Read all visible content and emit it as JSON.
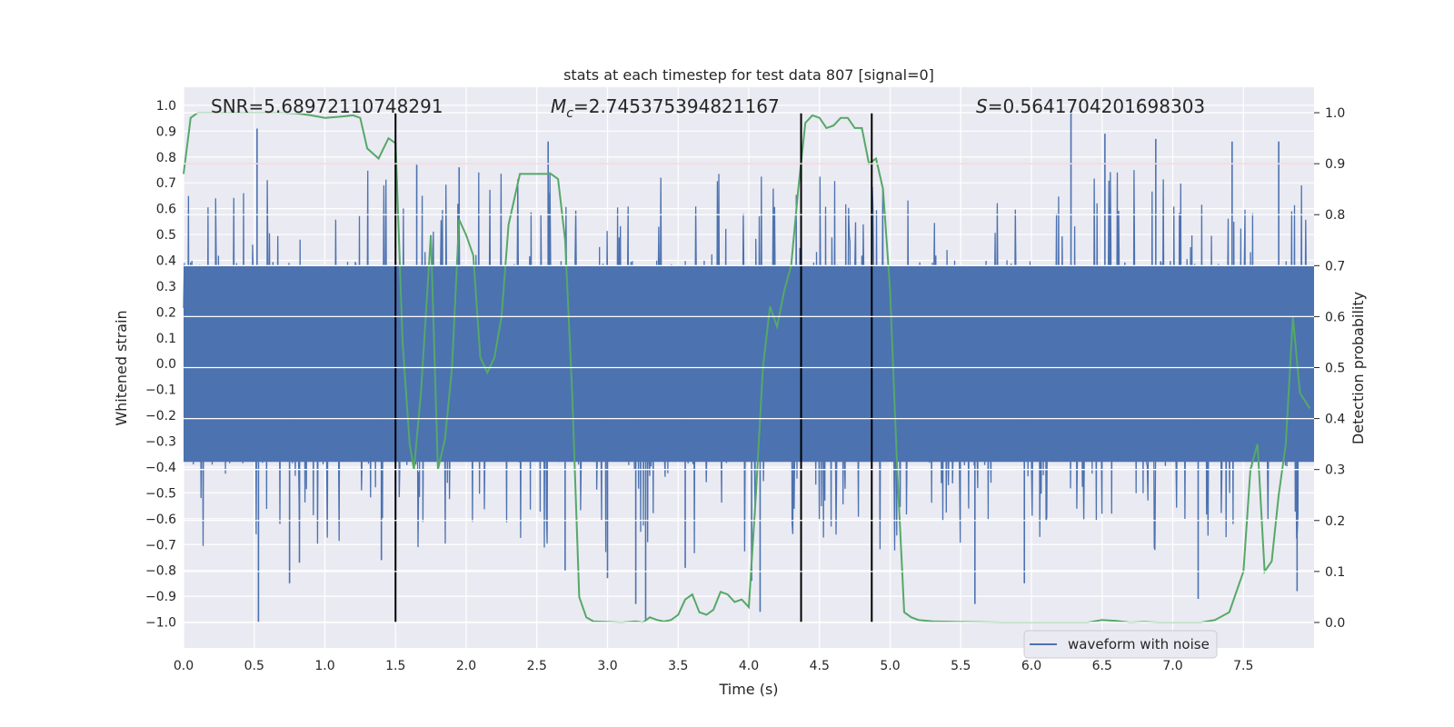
{
  "chart_data": {
    "type": "line",
    "title": "stats at each timestep for test data 807 [signal=0]",
    "xlabel": "Time (s)",
    "ylabel_left": "Whitened strain",
    "ylabel_right": "Detection probability",
    "xlim": [
      0,
      8
    ],
    "ylim_left": [
      -1.1,
      1.07
    ],
    "ylim_right": [
      -0.05,
      1.05
    ],
    "x_ticks": [
      "0.0",
      "0.5",
      "1.0",
      "1.5",
      "2.0",
      "2.5",
      "3.0",
      "3.5",
      "4.0",
      "4.5",
      "5.0",
      "5.5",
      "6.0",
      "6.5",
      "7.0",
      "7.5"
    ],
    "y_left_ticks": [
      "1.0",
      "0.9",
      "0.8",
      "0.7",
      "0.6",
      "0.5",
      "0.4",
      "0.3",
      "0.2",
      "0.1",
      "0.0",
      "-0.1",
      "-0.2",
      "-0.3",
      "-0.4",
      "-0.5",
      "-0.6",
      "-0.7",
      "-0.8",
      "-0.9",
      "-1.0"
    ],
    "y_right_ticks": [
      "1.0",
      "0.9",
      "0.8",
      "0.7",
      "0.6",
      "0.5",
      "0.4",
      "0.3",
      "0.2",
      "0.1",
      "0.0"
    ],
    "grid": true,
    "annotations": {
      "snr": "SNR=5.68972110748291",
      "mc_symbol": "M",
      "mc_sub": "c",
      "mc_value": "=2.745375394821167",
      "s_symbol": "S",
      "s_value": "=0.5641704201698303"
    },
    "threshold": 0.9,
    "threshold_color": "#c44e52",
    "vlines": [
      1.5,
      4.37,
      4.87
    ],
    "vline_color": "#000000",
    "waveform": {
      "name": "waveform with noise",
      "color": "#4c72b0",
      "core_amplitude": 0.4,
      "spike_peaks": [
        {
          "x": 0.52,
          "y": 0.91
        },
        {
          "x": 0.53,
          "y": -1.0
        },
        {
          "x": 0.75,
          "y": -0.85
        },
        {
          "x": 0.82,
          "y": -0.77
        },
        {
          "x": 1.65,
          "y": 0.77
        },
        {
          "x": 1.95,
          "y": 0.76
        },
        {
          "x": 2.58,
          "y": 0.86
        },
        {
          "x": 3.0,
          "y": -0.83
        },
        {
          "x": 3.27,
          "y": -0.99
        },
        {
          "x": 3.2,
          "y": -0.93
        },
        {
          "x": 4.08,
          "y": -0.96
        },
        {
          "x": 4.02,
          "y": -0.84
        },
        {
          "x": 5.6,
          "y": -0.93
        },
        {
          "x": 6.28,
          "y": 0.97
        },
        {
          "x": 6.52,
          "y": 0.89
        },
        {
          "x": 6.88,
          "y": 0.87
        },
        {
          "x": 7.18,
          "y": -0.91
        },
        {
          "x": 7.42,
          "y": 0.86
        },
        {
          "x": 7.75,
          "y": 0.86
        },
        {
          "x": 7.88,
          "y": -0.88
        },
        {
          "x": 5.95,
          "y": -0.85
        },
        {
          "x": 1.4,
          "y": -0.76
        },
        {
          "x": 2.7,
          "y": -0.8
        },
        {
          "x": 3.55,
          "y": -0.79
        }
      ]
    },
    "probability": {
      "color": "#55a868",
      "x": [
        0.0,
        0.05,
        0.1,
        0.2,
        0.3,
        0.4,
        0.5,
        0.6,
        0.7,
        0.8,
        0.9,
        1.0,
        1.1,
        1.2,
        1.25,
        1.3,
        1.38,
        1.45,
        1.5,
        1.55,
        1.6,
        1.63,
        1.68,
        1.75,
        1.8,
        1.85,
        1.9,
        1.95,
        2.0,
        2.05,
        2.1,
        2.15,
        2.2,
        2.25,
        2.3,
        2.38,
        2.45,
        2.55,
        2.6,
        2.65,
        2.7,
        2.75,
        2.8,
        2.85,
        2.9,
        3.0,
        3.1,
        3.2,
        3.25,
        3.3,
        3.35,
        3.4,
        3.45,
        3.5,
        3.55,
        3.6,
        3.65,
        3.7,
        3.75,
        3.8,
        3.85,
        3.9,
        3.95,
        4.0,
        4.05,
        4.1,
        4.15,
        4.2,
        4.25,
        4.3,
        4.35,
        4.4,
        4.45,
        4.5,
        4.55,
        4.6,
        4.65,
        4.7,
        4.75,
        4.8,
        4.85,
        4.9,
        4.95,
        5.0,
        5.05,
        5.1,
        5.15,
        5.2,
        5.3,
        5.5,
        5.8,
        6.0,
        6.2,
        6.4,
        6.5,
        6.6,
        6.7,
        6.8,
        6.9,
        7.0,
        7.1,
        7.2,
        7.3,
        7.4,
        7.5,
        7.55,
        7.6,
        7.65,
        7.7,
        7.75,
        7.8,
        7.85,
        7.9,
        7.97
      ],
      "y": [
        0.88,
        0.99,
        1.0,
        1.0,
        1.0,
        1.0,
        1.0,
        1.0,
        1.0,
        0.999,
        0.995,
        0.99,
        0.992,
        0.995,
        0.99,
        0.93,
        0.91,
        0.95,
        0.94,
        0.55,
        0.35,
        0.3,
        0.45,
        0.76,
        0.3,
        0.36,
        0.5,
        0.79,
        0.76,
        0.72,
        0.52,
        0.49,
        0.52,
        0.6,
        0.78,
        0.88,
        0.88,
        0.88,
        0.88,
        0.87,
        0.75,
        0.45,
        0.05,
        0.01,
        0.002,
        0.001,
        0.0,
        0.002,
        0.0,
        0.01,
        0.005,
        0.002,
        0.005,
        0.015,
        0.045,
        0.055,
        0.02,
        0.015,
        0.025,
        0.06,
        0.055,
        0.04,
        0.045,
        0.03,
        0.25,
        0.5,
        0.62,
        0.58,
        0.65,
        0.7,
        0.85,
        0.98,
        0.995,
        0.99,
        0.97,
        0.975,
        0.99,
        0.99,
        0.97,
        0.97,
        0.9,
        0.91,
        0.85,
        0.65,
        0.3,
        0.02,
        0.01,
        0.005,
        0.002,
        0.001,
        0.0,
        0.0,
        0.0,
        0.0,
        0.005,
        0.003,
        0.0,
        0.001,
        0.0,
        0.0,
        0.0,
        0.0,
        0.005,
        0.02,
        0.1,
        0.3,
        0.35,
        0.1,
        0.12,
        0.25,
        0.35,
        0.6,
        0.45,
        0.42
      ]
    },
    "legend": {
      "entries": [
        "waveform with noise"
      ],
      "placement": "bottom-right"
    }
  }
}
